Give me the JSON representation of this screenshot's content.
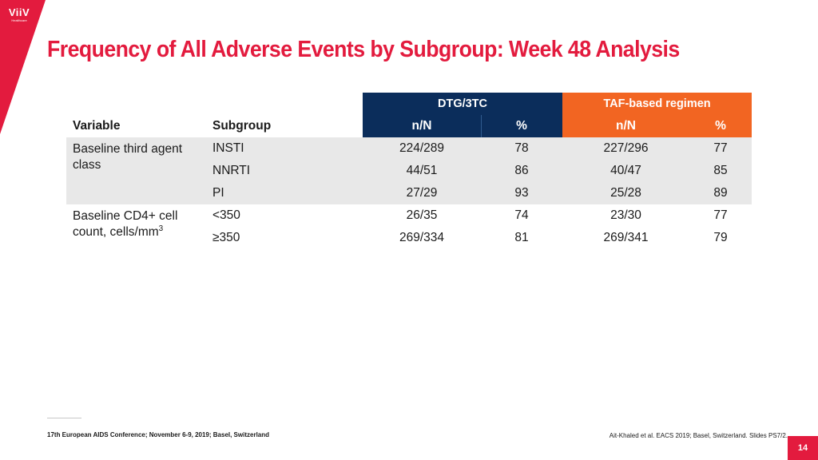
{
  "brand": {
    "logo_text": "ViiV",
    "logo_subtext": "Healthcare",
    "accent_color": "#e31b3e"
  },
  "title": "Frequency of All Adverse Events by Subgroup: Week 48 Analysis",
  "table": {
    "group_headers": {
      "dtg": "DTG/3TC",
      "taf": "TAF-based regimen"
    },
    "column_headers": {
      "variable": "Variable",
      "subgroup": "Subgroup",
      "dtg_n": "n/N",
      "dtg_pct": "%",
      "taf_n": "n/N",
      "taf_pct": "%"
    },
    "colors": {
      "dtg_header": "#0b2d5b",
      "taf_header": "#f26522",
      "shaded_row": "#e8e8e8"
    },
    "groups": [
      {
        "variable": "Baseline third agent class",
        "rows": [
          {
            "subgroup": "INSTI",
            "dtg_n": "224/289",
            "dtg_pct": "78",
            "taf_n": "227/296",
            "taf_pct": "77"
          },
          {
            "subgroup": "NNRTI",
            "dtg_n": "44/51",
            "dtg_pct": "86",
            "taf_n": "40/47",
            "taf_pct": "85"
          },
          {
            "subgroup": "PI",
            "dtg_n": "27/29",
            "dtg_pct": "93",
            "taf_n": "25/28",
            "taf_pct": "89"
          }
        ]
      },
      {
        "variable": "Baseline CD4+ cell count, cells/mm",
        "variable_superscript": "3",
        "rows": [
          {
            "subgroup": "<350",
            "dtg_n": "26/35",
            "dtg_pct": "74",
            "taf_n": "23/30",
            "taf_pct": "77"
          },
          {
            "subgroup": "≥350",
            "dtg_n": "269/334",
            "dtg_pct": "81",
            "taf_n": "269/341",
            "taf_pct": "79"
          }
        ]
      }
    ]
  },
  "footer": {
    "conference": "17th European AIDS Conference; November 6-9, 2019; Basel, Switzerland",
    "citation": "Ait-Khaled et al. EACS 2019; Basel, Switzerland. Slides PS7/2.",
    "page_number": "14"
  }
}
